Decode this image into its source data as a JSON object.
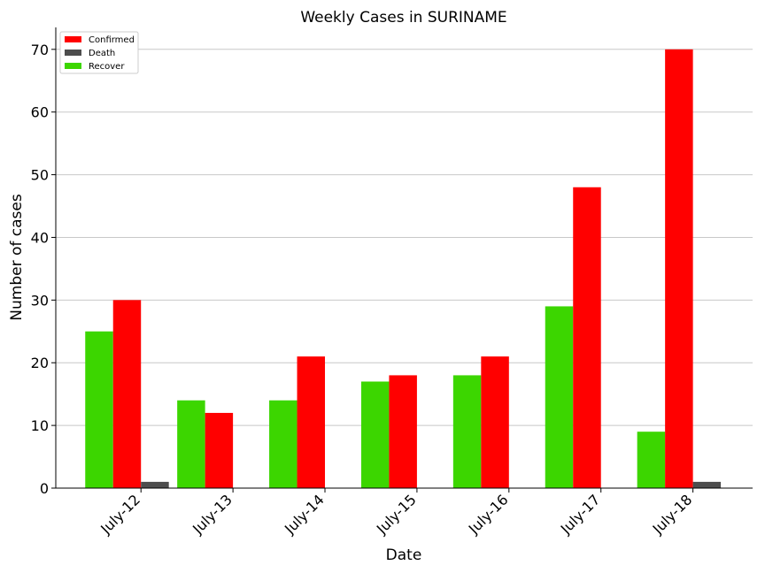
{
  "chart_data": {
    "type": "bar",
    "title": "Weekly Cases in SURINAME",
    "xlabel": "Date",
    "ylabel": "Number of cases",
    "categories": [
      "July-12",
      "July-13",
      "July-14",
      "July-15",
      "July-16",
      "July-17",
      "July-18"
    ],
    "series": [
      {
        "name": "Recover",
        "color": "#3cd600",
        "values": [
          25,
          14,
          14,
          17,
          18,
          29,
          9
        ]
      },
      {
        "name": "Confirmed",
        "color": "#ff0000",
        "values": [
          30,
          12,
          21,
          18,
          21,
          48,
          70
        ]
      },
      {
        "name": "Death",
        "color": "#4d4d4d",
        "values": [
          1,
          0,
          0,
          0,
          0,
          0,
          1
        ]
      }
    ],
    "legend_order": [
      "Confirmed",
      "Death",
      "Recover"
    ],
    "legend_position": "top-left",
    "ylim": [
      0,
      73.5
    ],
    "yticks": [
      0,
      10,
      20,
      30,
      40,
      50,
      60,
      70
    ],
    "grid": "y"
  }
}
